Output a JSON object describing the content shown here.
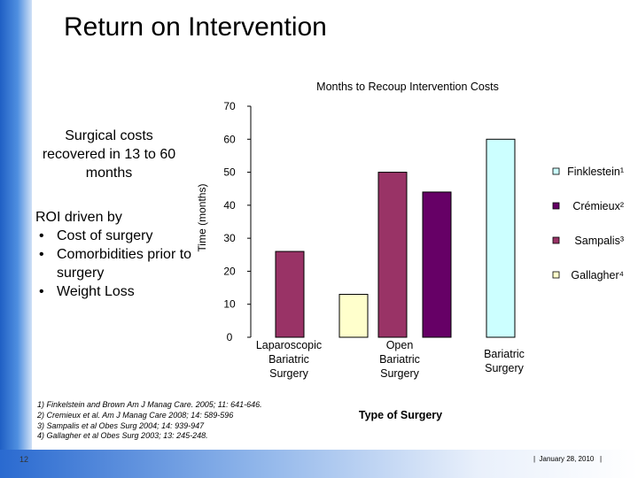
{
  "slide": {
    "title": "Return on Intervention",
    "number": "12",
    "footer": "|  January 28, 2010   |"
  },
  "callout": "Surgical costs recovered in 13 to 60 months",
  "roi": {
    "heading": "ROI driven by",
    "items": [
      "Cost of surgery",
      "Comorbidities prior to surgery",
      "Weight Loss"
    ]
  },
  "references": [
    "1) Finkelstein and Brown  Am J Manag Care. 2005; 11: 641-646.",
    "2) Cremieux et al. Am J Manag Care 2008; 14: 589-596",
    "3) Sampalis et al Obes Surg 2004; 14: 939-947",
    "4) Gallagher et al Obes Surg 2003; 13: 245-248."
  ],
  "chart_data": {
    "type": "bar",
    "title": "Months to Recoup Intervention Costs",
    "xlabel": "Type of Surgery",
    "ylabel": "Time (months)",
    "ylim": [
      0,
      70
    ],
    "yticks": [
      0,
      10,
      20,
      30,
      40,
      50,
      60,
      70
    ],
    "grid": false,
    "legend_placement": "right",
    "categories": [
      {
        "lines": [
          "Laparoscopic",
          "Bariatric",
          "Surgery"
        ]
      },
      {
        "lines": [
          "Open",
          "Bariatric",
          "Surgery"
        ]
      },
      {
        "lines": [
          "Bariatric",
          "Surgery"
        ]
      }
    ],
    "bars": [
      {
        "category": 0,
        "series": "Sampalis³",
        "value": 26,
        "color": "#993366"
      },
      {
        "category": 1,
        "series": "Gallagher⁴",
        "value": 13,
        "color": "#ffffcc"
      },
      {
        "category": 1,
        "series": "Sampalis³",
        "value": 50,
        "color": "#993366"
      },
      {
        "category": 1,
        "series": "Crémieux²",
        "value": 44,
        "color": "#660066"
      },
      {
        "category": 2,
        "series": "Finklestein¹",
        "value": 60,
        "color": "#ccffff"
      }
    ],
    "legend": [
      {
        "label": "Finklestein¹",
        "color": "#ccffff"
      },
      {
        "label": "Crémieux²",
        "color": "#660066"
      },
      {
        "label": "Sampalis³",
        "color": "#993366"
      },
      {
        "label": "Gallagher⁴",
        "color": "#ffffcc"
      }
    ]
  }
}
